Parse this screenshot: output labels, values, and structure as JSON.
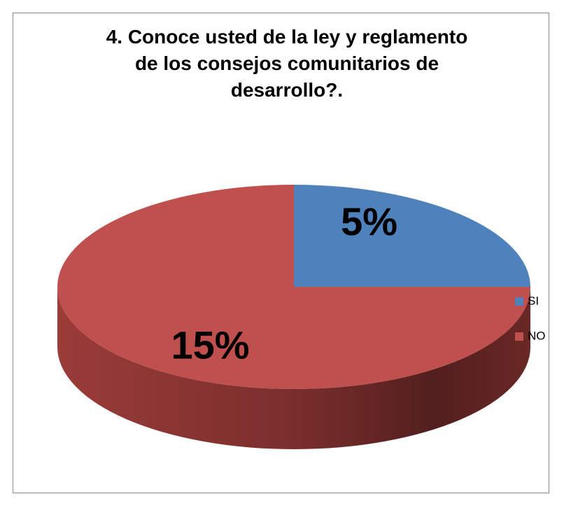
{
  "chart_data": {
    "type": "pie",
    "title": "4. Conoce usted de la ley y reglamento de los consejos comunitarios de desarrollo?.",
    "categories": [
      "SI",
      "NO"
    ],
    "values": [
      5,
      15
    ],
    "value_labels": [
      "5%",
      "15%"
    ],
    "colors": [
      "#4f81bd",
      "#c0504d"
    ],
    "legend": "right"
  }
}
